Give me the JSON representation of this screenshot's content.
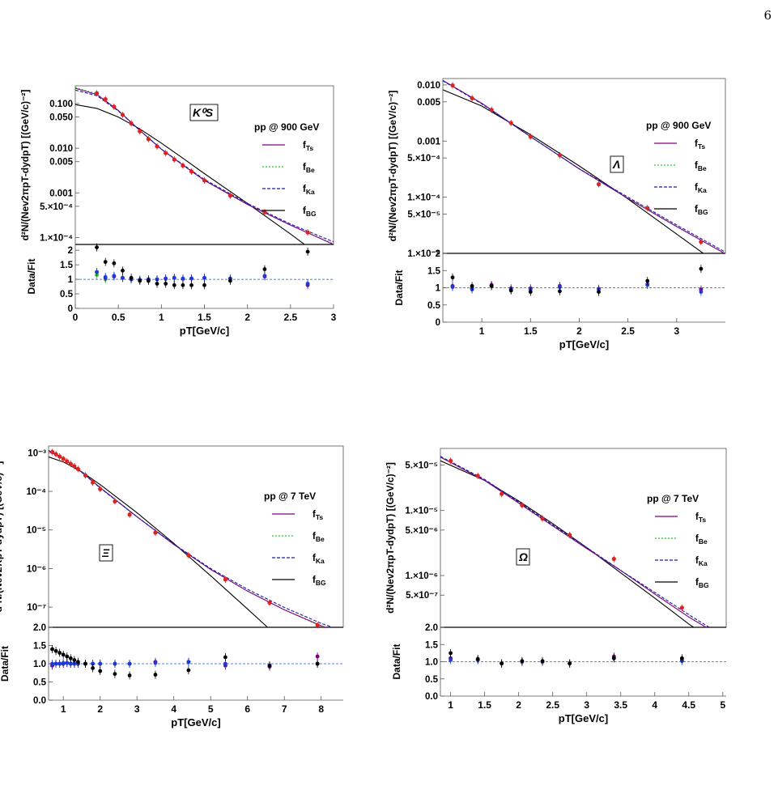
{
  "page": {
    "number": "6"
  },
  "legend_entries": [
    "f_Ts",
    "f_Be",
    "f_Ka",
    "f_BG"
  ],
  "colors": {
    "f_Ts": "#800080",
    "f_Be": "#22cc22",
    "f_Ka": "#1a1aaa",
    "f_BG": "#000000",
    "data_points": "#dd2222",
    "ratio_Ts": "#800080",
    "ratio_Be": "#22cc22",
    "ratio_Ka": "#1a3adb",
    "ratio_BG": "#000000",
    "unity_line": "#2255dd"
  },
  "chart_data": [
    {
      "type": "scatter",
      "particle_label": "K⁰S",
      "legend_title": "pp @ 900 GeV",
      "legend_position": "middle-right",
      "ylabel": "d²N/(Nev2πpT-dydpT) [(GeV/c)⁻²]",
      "ratio_ylabel": "Data/Fit",
      "xlabel": "pT[GeV/c]",
      "x_ticks": [
        "0",
        "0.5",
        "1",
        "1.5",
        "2",
        "2.5",
        "3"
      ],
      "y_ticks": [
        "0.100",
        "0.050",
        "0.010",
        "0.005",
        "0.001",
        "5.×10⁻⁴",
        "1.×10⁻⁴"
      ],
      "ratio_ticks": [
        "0",
        "0.5",
        "1",
        "1.5",
        "2"
      ],
      "xlim": [
        0,
        3
      ],
      "ylim": [
        7e-05,
        0.25
      ],
      "ratio_ylim": [
        0,
        2.2
      ],
      "yscale": "log",
      "x": [
        0.25,
        0.35,
        0.45,
        0.55,
        0.65,
        0.75,
        0.85,
        0.95,
        1.05,
        1.15,
        1.25,
        1.35,
        1.5,
        1.8,
        2.2,
        2.7
      ],
      "y": [
        0.17,
        0.125,
        0.085,
        0.056,
        0.036,
        0.024,
        0.016,
        0.011,
        0.0078,
        0.0056,
        0.0041,
        0.003,
        0.0019,
        0.00087,
        0.00037,
        0.00013
      ],
      "fits": {
        "f_Ts": [
          [
            0,
            0.22
          ],
          [
            0.25,
            0.16
          ],
          [
            0.5,
            0.07
          ],
          [
            0.75,
            0.025
          ],
          [
            1.0,
            0.0095
          ],
          [
            1.25,
            0.0042
          ],
          [
            1.5,
            0.0019
          ],
          [
            2.0,
            0.00055
          ],
          [
            2.5,
            0.00019
          ],
          [
            3.0,
            7e-05
          ]
        ],
        "f_Be": [
          [
            0,
            0.23
          ],
          [
            0.25,
            0.165
          ],
          [
            0.5,
            0.07
          ],
          [
            0.75,
            0.025
          ],
          [
            1.0,
            0.0095
          ],
          [
            1.25,
            0.0042
          ],
          [
            1.5,
            0.0019
          ],
          [
            2.0,
            0.00055
          ],
          [
            2.5,
            0.00019
          ],
          [
            3.0,
            7.2e-05
          ]
        ],
        "f_Ka": [
          [
            0,
            0.2
          ],
          [
            0.25,
            0.15
          ],
          [
            0.5,
            0.068
          ],
          [
            0.75,
            0.025
          ],
          [
            1.0,
            0.0096
          ],
          [
            1.25,
            0.0043
          ],
          [
            1.5,
            0.002
          ],
          [
            2.0,
            0.00058
          ],
          [
            2.5,
            0.0002
          ],
          [
            3.0,
            8e-05
          ]
        ],
        "f_BG": [
          [
            0,
            0.095
          ],
          [
            0.25,
            0.078
          ],
          [
            0.5,
            0.05
          ],
          [
            0.75,
            0.027
          ],
          [
            1.0,
            0.013
          ],
          [
            1.25,
            0.006
          ],
          [
            1.5,
            0.0027
          ],
          [
            2.0,
            0.00058
          ],
          [
            2.5,
            0.00012
          ],
          [
            3.0,
            2.3e-05
          ]
        ]
      },
      "ratios": {
        "f_Ts": [
          1.25,
          1.05,
          1.1,
          1.05,
          1.0,
          0.98,
          1.0,
          1.0,
          1.02,
          1.05,
          1.02,
          1.03,
          1.05,
          1.02,
          1.1,
          0.8
        ],
        "f_Be": [
          1.15,
          1.0,
          1.1,
          1.05,
          1.0,
          0.98,
          1.0,
          1.0,
          1.02,
          1.05,
          1.02,
          1.03,
          1.05,
          1.02,
          1.1,
          0.82
        ],
        "f_Ka": [
          1.25,
          1.08,
          1.12,
          1.05,
          1.0,
          0.98,
          1.0,
          1.0,
          1.03,
          1.05,
          1.03,
          1.03,
          1.05,
          1.03,
          1.12,
          0.85
        ],
        "f_BG": [
          2.1,
          1.6,
          1.55,
          1.3,
          1.05,
          0.95,
          0.95,
          0.85,
          0.85,
          0.8,
          0.8,
          0.8,
          0.8,
          0.95,
          1.35,
          1.95
        ]
      }
    },
    {
      "type": "scatter",
      "particle_label": "Λ",
      "legend_title": "pp @ 900 GeV",
      "legend_position": "middle-right",
      "ylabel": "d²N/(Nev2πpT-dydpT) [(GeV/c)⁻²]",
      "ratio_ylabel": "Data/Fit",
      "xlabel": "pT[GeV/c]",
      "x_ticks": [
        "1",
        "1.5",
        "2",
        "2.5",
        "3"
      ],
      "y_ticks": [
        "0.010",
        "0.005",
        "0.001",
        "5.×10⁻⁴",
        "1.×10⁻⁴",
        "5.×10⁻⁵",
        "1.×10⁻⁵"
      ],
      "ratio_ticks": [
        "0",
        "0.5",
        "1",
        "1.5",
        "2"
      ],
      "xlim": [
        0.6,
        3.5
      ],
      "ylim": [
        1e-05,
        0.013
      ],
      "ratio_ylim": [
        0,
        2
      ],
      "yscale": "log",
      "x": [
        0.7,
        0.9,
        1.1,
        1.3,
        1.5,
        1.8,
        2.2,
        2.7,
        3.25
      ],
      "y": [
        0.0098,
        0.0058,
        0.0036,
        0.0021,
        0.0012,
        0.00056,
        0.00017,
        6.4e-05,
        1.6e-05
      ],
      "fits": {
        "f_Ts": [
          [
            0.6,
            0.012
          ],
          [
            1.0,
            0.0047
          ],
          [
            1.5,
            0.0012
          ],
          [
            2.0,
            0.00032
          ],
          [
            2.5,
            9.5e-05
          ],
          [
            3.0,
            3e-05
          ],
          [
            3.5,
            9.8e-06
          ]
        ],
        "f_Be": [
          [
            0.6,
            0.012
          ],
          [
            1.0,
            0.0047
          ],
          [
            1.5,
            0.0012
          ],
          [
            2.0,
            0.00032
          ],
          [
            2.5,
            9.5e-05
          ],
          [
            3.0,
            3e-05
          ],
          [
            3.5,
            9.8e-06
          ]
        ],
        "f_Ka": [
          [
            0.6,
            0.0118
          ],
          [
            1.0,
            0.0046
          ],
          [
            1.5,
            0.0012
          ],
          [
            2.0,
            0.00032
          ],
          [
            2.5,
            0.0001
          ],
          [
            3.0,
            3.2e-05
          ],
          [
            3.5,
            1.05e-05
          ]
        ],
        "f_BG": [
          [
            0.6,
            0.0082
          ],
          [
            1.0,
            0.0042
          ],
          [
            1.5,
            0.0013
          ],
          [
            2.0,
            0.00036
          ],
          [
            2.5,
            9.3e-05
          ],
          [
            3.0,
            2.2e-05
          ],
          [
            3.5,
            5.2e-06
          ]
        ]
      },
      "ratios": {
        "f_Ts": [
          1.05,
          0.98,
          1.08,
          0.98,
          0.98,
          1.05,
          0.97,
          1.1,
          0.95
        ],
        "f_Be": [
          1.05,
          0.98,
          1.08,
          0.98,
          0.98,
          1.05,
          0.97,
          1.1,
          0.95
        ],
        "f_Ka": [
          1.02,
          0.95,
          1.05,
          0.95,
          0.95,
          1.02,
          0.95,
          1.08,
          0.88
        ],
        "f_BG": [
          1.3,
          1.05,
          1.05,
          0.92,
          0.88,
          0.9,
          0.88,
          1.2,
          1.55
        ]
      }
    },
    {
      "type": "scatter",
      "particle_label": "Ξ",
      "legend_title": "pp @ 7 TeV",
      "legend_position": "middle-right",
      "ylabel": "d²N/(Nev2πpT-dydpT) [(GeV/c)⁻²]",
      "ratio_ylabel": "Data/Fit",
      "xlabel": "pT[GeV/c]",
      "x_ticks": [
        "1",
        "2",
        "3",
        "4",
        "5",
        "6",
        "7",
        "8"
      ],
      "y_ticks": [
        "10⁻³",
        "10⁻⁴",
        "10⁻⁵",
        "10⁻⁶",
        "10⁻⁷"
      ],
      "ratio_ticks": [
        "0.0",
        "0.5",
        "1.0",
        "1.5",
        "2.0"
      ],
      "xlim": [
        0.6,
        8.6
      ],
      "ylim": [
        3e-08,
        0.0015
      ],
      "ratio_ylim": [
        0,
        2
      ],
      "yscale": "log",
      "x": [
        0.7,
        0.8,
        0.9,
        1.0,
        1.1,
        1.2,
        1.3,
        1.4,
        1.6,
        1.8,
        2.0,
        2.4,
        2.8,
        3.5,
        4.4,
        5.4,
        6.6,
        7.9
      ],
      "y": [
        0.00105,
        0.00092,
        0.0008,
        0.0007,
        0.0006,
        0.00052,
        0.00045,
        0.00038,
        0.00026,
        0.00017,
        0.000115,
        5.5e-05,
        2.5e-05,
        8.5e-06,
        2.2e-06,
        5.2e-07,
        1.3e-07,
        3.4e-08
      ],
      "fits": {
        "f_Ts": [
          [
            0.6,
            0.00115
          ],
          [
            1.0,
            0.00072
          ],
          [
            1.5,
            0.00032
          ],
          [
            2.0,
            0.000125
          ],
          [
            3.0,
            2.2e-05
          ],
          [
            4.0,
            4.2e-06
          ],
          [
            5.0,
            9.5e-07
          ],
          [
            6.0,
            2.6e-07
          ],
          [
            7.0,
            8.5e-08
          ],
          [
            8.0,
            3.3e-08
          ],
          [
            8.6,
            2e-08
          ]
        ],
        "f_Be": [
          [
            0.6,
            0.00115
          ],
          [
            1.0,
            0.00072
          ],
          [
            1.5,
            0.00032
          ],
          [
            2.0,
            0.000125
          ],
          [
            3.0,
            2.2e-05
          ],
          [
            4.0,
            4.2e-06
          ],
          [
            5.0,
            9.5e-07
          ],
          [
            6.0,
            2.6e-07
          ],
          [
            7.0,
            8.5e-08
          ],
          [
            8.0,
            3.2e-08
          ],
          [
            8.6,
            1.9e-08
          ]
        ],
        "f_Ka": [
          [
            0.6,
            0.00112
          ],
          [
            1.0,
            0.0007
          ],
          [
            1.5,
            0.00031
          ],
          [
            2.0,
            0.000122
          ],
          [
            3.0,
            2.2e-05
          ],
          [
            4.0,
            4.3e-06
          ],
          [
            5.0,
            1e-06
          ],
          [
            6.0,
            2.9e-07
          ],
          [
            7.0,
            9.8e-08
          ],
          [
            8.0,
            3.8e-08
          ],
          [
            8.6,
            2.4e-08
          ]
        ],
        "f_BG": [
          [
            0.6,
            0.00078
          ],
          [
            1.0,
            0.00058
          ],
          [
            1.5,
            0.00032
          ],
          [
            2.0,
            0.00015
          ],
          [
            3.0,
            2.8e-05
          ],
          [
            4.0,
            4.5e-06
          ],
          [
            5.0,
            6.5e-07
          ],
          [
            6.0,
            9e-08
          ],
          [
            7.0,
            1.2e-08
          ],
          [
            7.3,
            6e-09
          ]
        ]
      },
      "ratios": {
        "f_Ts": [
          0.95,
          1.0,
          1.0,
          1.0,
          1.02,
          1.0,
          1.0,
          1.0,
          1.0,
          1.0,
          1.0,
          1.0,
          1.0,
          1.05,
          1.05,
          0.95,
          0.92,
          1.2
        ],
        "f_Be": [
          0.95,
          1.0,
          1.0,
          1.0,
          1.02,
          1.0,
          1.0,
          1.0,
          1.0,
          1.0,
          1.0,
          1.0,
          1.0,
          1.05,
          1.05,
          0.95,
          0.92,
          1.2
        ],
        "f_Ka": [
          1.0,
          1.0,
          1.0,
          1.02,
          1.02,
          1.0,
          1.0,
          1.0,
          1.0,
          1.0,
          1.0,
          1.0,
          1.0,
          1.02,
          1.05,
          1.0,
          0.95,
          1.0
        ],
        "f_BG": [
          1.4,
          1.35,
          1.3,
          1.25,
          1.2,
          1.15,
          1.1,
          1.05,
          1.0,
          0.88,
          0.8,
          0.72,
          0.68,
          0.7,
          0.82,
          1.18,
          0.95,
          1.0
        ]
      }
    },
    {
      "type": "scatter",
      "particle_label": "Ω",
      "legend_title": "pp @ 7 TeV",
      "legend_position": "middle-right",
      "ylabel": "d²N/(Nev2πpT-dydpT) [(GeV/c)⁻²]",
      "ratio_ylabel": "Data/Fit",
      "xlabel": "pT[GeV/c]",
      "x_ticks": [
        "1",
        "1.5",
        "2",
        "2.5",
        "3",
        "3.5",
        "4",
        "4.5",
        "5"
      ],
      "y_ticks": [
        "5.×10⁻⁵",
        "1.×10⁻⁵",
        "5.×10⁻⁶",
        "1.×10⁻⁶",
        "5.×10⁻⁷"
      ],
      "ratio_ticks": [
        "0.0",
        "0.5",
        "1.0",
        "1.5",
        "2.0"
      ],
      "xlim": [
        0.85,
        5.05
      ],
      "ylim": [
        1.6e-07,
        9e-05
      ],
      "ratio_ylim": [
        0,
        2
      ],
      "yscale": "log",
      "x": [
        1.0,
        1.4,
        1.75,
        2.05,
        2.35,
        2.75,
        3.4,
        4.4
      ],
      "y": [
        5.8e-05,
        3.4e-05,
        1.8e-05,
        1.2e-05,
        7.5e-06,
        4.2e-06,
        1.8e-06,
        3.2e-07
      ],
      "fits": {
        "f_Ts": [
          [
            0.85,
            6.6e-05
          ],
          [
            1.5,
            2.9e-05
          ],
          [
            2.0,
            1.3e-05
          ],
          [
            2.5,
            5.8e-06
          ],
          [
            3.0,
            2.6e-06
          ],
          [
            3.5,
            1.2e-06
          ],
          [
            4.0,
            5.2e-07
          ],
          [
            4.5,
            2.3e-07
          ],
          [
            4.8,
            1.5e-07
          ]
        ],
        "f_Be": [
          [
            0.85,
            6.6e-05
          ],
          [
            1.5,
            2.9e-05
          ],
          [
            2.0,
            1.3e-05
          ],
          [
            2.5,
            5.8e-06
          ],
          [
            3.0,
            2.6e-06
          ],
          [
            3.5,
            1.2e-06
          ],
          [
            4.0,
            5.2e-07
          ],
          [
            4.5,
            2.3e-07
          ],
          [
            4.8,
            1.5e-07
          ]
        ],
        "f_Ka": [
          [
            0.85,
            6.8e-05
          ],
          [
            1.5,
            3e-05
          ],
          [
            2.0,
            1.35e-05
          ],
          [
            2.5,
            6e-06
          ],
          [
            3.0,
            2.7e-06
          ],
          [
            3.5,
            1.2e-06
          ],
          [
            4.0,
            5.5e-07
          ],
          [
            4.5,
            2.5e-07
          ],
          [
            4.8,
            1.6e-07
          ]
        ],
        "f_BG": [
          [
            0.85,
            5.8e-05
          ],
          [
            1.5,
            2.9e-05
          ],
          [
            2.0,
            1.4e-05
          ],
          [
            2.5,
            6.3e-06
          ],
          [
            3.0,
            2.7e-06
          ],
          [
            3.5,
            1.1e-06
          ],
          [
            4.0,
            4.5e-07
          ],
          [
            4.5,
            1.8e-07
          ],
          [
            4.7,
            1.3e-07
          ]
        ]
      },
      "ratios": {
        "f_Ts": [
          1.1,
          1.05,
          0.95,
          1.0,
          1.0,
          0.95,
          1.15,
          1.05
        ],
        "f_Be": [
          1.1,
          1.05,
          0.95,
          1.0,
          1.0,
          0.95,
          1.15,
          1.05
        ],
        "f_Ka": [
          1.05,
          1.05,
          0.95,
          1.0,
          1.0,
          0.95,
          1.1,
          1.02
        ],
        "f_BG": [
          1.25,
          1.08,
          0.95,
          1.02,
          1.02,
          0.95,
          1.1,
          1.1
        ]
      }
    }
  ]
}
